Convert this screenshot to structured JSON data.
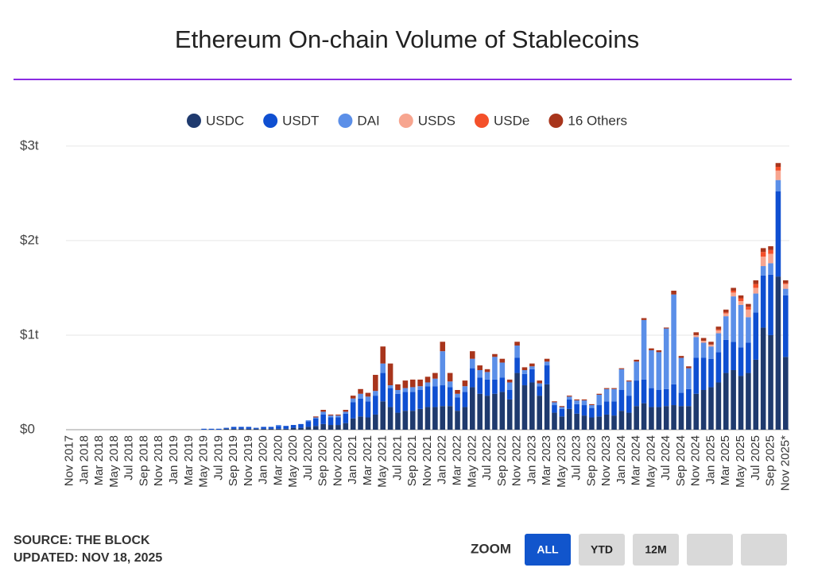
{
  "chart_data": {
    "type": "stacked-bar",
    "title": "Ethereum On-chain Volume of Stablecoins",
    "categories": [
      "Nov 2017",
      null,
      "Jan 2018",
      null,
      "Mar 2018",
      null,
      "May 2018",
      null,
      "Jul 2018",
      null,
      "Sep 2018",
      null,
      "Nov 2018",
      null,
      "Jan 2019",
      null,
      "Mar 2019",
      null,
      "May 2019",
      null,
      "Jul 2019",
      null,
      "Sep 2019",
      null,
      "Nov 2019",
      null,
      "Jan 2020",
      null,
      "Mar 2020",
      null,
      "May 2020",
      null,
      "Jul 2020",
      null,
      "Sep 2020",
      null,
      "Nov 2020",
      null,
      "Jan 2021",
      null,
      "Mar 2021",
      null,
      "May 2021",
      null,
      "Jul 2021",
      null,
      "Sep 2021",
      null,
      "Nov 2021",
      null,
      "Jan 2022",
      null,
      "Mar 2022",
      null,
      "May 2022",
      null,
      "Jul 2022",
      null,
      "Sep 2022",
      null,
      "Nov 2022",
      null,
      "Jan 2023",
      null,
      "Mar 2023",
      null,
      "May 2023",
      null,
      "Jul 2023",
      null,
      "Sep 2023",
      null,
      "Nov 2023",
      null,
      "Jan 2024",
      null,
      "Mar 2024",
      null,
      "May 2024",
      null,
      "Jul 2024",
      null,
      "Sep 2024",
      null,
      "Nov 2024",
      null,
      "Jan 2025",
      null,
      "Mar 2025",
      null,
      "May 2025",
      null,
      "Jul 2025",
      null,
      "Sep 2025",
      null,
      "Nov 2025*"
    ],
    "series": [
      {
        "name": "USDC",
        "color": "#1f3a6e",
        "values": [
          0,
          0,
          0,
          0,
          0,
          0,
          0,
          0,
          0,
          0,
          0,
          0,
          0,
          0,
          0,
          0,
          0,
          0,
          0,
          0,
          0,
          0.01,
          0.01,
          0.01,
          0.01,
          0.01,
          0.01,
          0.01,
          0.01,
          0.01,
          0.02,
          0.02,
          0.03,
          0.04,
          0.06,
          0.05,
          0.05,
          0.07,
          0.12,
          0.14,
          0.13,
          0.16,
          0.3,
          0.24,
          0.18,
          0.2,
          0.2,
          0.22,
          0.24,
          0.24,
          0.25,
          0.25,
          0.2,
          0.24,
          0.45,
          0.38,
          0.36,
          0.38,
          0.4,
          0.32,
          0.6,
          0.47,
          0.5,
          0.36,
          0.48,
          0.18,
          0.14,
          0.22,
          0.17,
          0.15,
          0.13,
          0.14,
          0.16,
          0.15,
          0.2,
          0.18,
          0.25,
          0.28,
          0.24,
          0.24,
          0.25,
          0.26,
          0.25,
          0.25,
          0.38,
          0.42,
          0.45,
          0.5,
          0.6,
          0.63,
          0.57,
          0.6,
          0.74,
          1.08,
          1.0,
          1.62,
          0.77
        ]
      },
      {
        "name": "USDT",
        "color": "#0f4fd1",
        "values": [
          0,
          0,
          0,
          0,
          0,
          0,
          0,
          0,
          0,
          0,
          0,
          0,
          0,
          0,
          0,
          0,
          0,
          0,
          0.01,
          0.01,
          0.01,
          0.01,
          0.02,
          0.02,
          0.02,
          0.01,
          0.02,
          0.02,
          0.03,
          0.03,
          0.03,
          0.04,
          0.06,
          0.08,
          0.1,
          0.08,
          0.08,
          0.1,
          0.17,
          0.19,
          0.17,
          0.2,
          0.3,
          0.2,
          0.2,
          0.2,
          0.2,
          0.2,
          0.22,
          0.22,
          0.22,
          0.2,
          0.14,
          0.16,
          0.2,
          0.17,
          0.17,
          0.15,
          0.15,
          0.1,
          0.16,
          0.12,
          0.14,
          0.1,
          0.2,
          0.08,
          0.08,
          0.1,
          0.1,
          0.11,
          0.1,
          0.12,
          0.14,
          0.15,
          0.22,
          0.18,
          0.27,
          0.25,
          0.2,
          0.18,
          0.18,
          0.22,
          0.14,
          0.18,
          0.38,
          0.34,
          0.3,
          0.32,
          0.35,
          0.3,
          0.3,
          0.32,
          0.5,
          0.55,
          0.64,
          0.9,
          0.65
        ]
      },
      {
        "name": "DAI",
        "color": "#5b8fe8",
        "values": [
          0,
          0,
          0,
          0,
          0,
          0,
          0,
          0,
          0,
          0,
          0,
          0,
          0,
          0,
          0,
          0,
          0,
          0,
          0,
          0,
          0,
          0,
          0,
          0,
          0,
          0,
          0,
          0,
          0.01,
          0,
          0,
          0,
          0.01,
          0.01,
          0.03,
          0.02,
          0.02,
          0.02,
          0.04,
          0.05,
          0.05,
          0.05,
          0.1,
          0.03,
          0.04,
          0.04,
          0.05,
          0.04,
          0.04,
          0.08,
          0.36,
          0.06,
          0.04,
          0.06,
          0.1,
          0.08,
          0.08,
          0.24,
          0.16,
          0.08,
          0.13,
          0.04,
          0.03,
          0.03,
          0.04,
          0.03,
          0.02,
          0.03,
          0.04,
          0.05,
          0.03,
          0.11,
          0.13,
          0.13,
          0.22,
          0.15,
          0.2,
          0.63,
          0.4,
          0.4,
          0.64,
          0.95,
          0.37,
          0.22,
          0.22,
          0.16,
          0.13,
          0.2,
          0.25,
          0.48,
          0.45,
          0.27,
          0.2,
          0.1,
          0.12,
          0.12,
          0.07
        ]
      },
      {
        "name": "USDS",
        "color": "#f7a58f",
        "values": [
          0,
          0,
          0,
          0,
          0,
          0,
          0,
          0,
          0,
          0,
          0,
          0,
          0,
          0,
          0,
          0,
          0,
          0,
          0,
          0,
          0,
          0,
          0,
          0,
          0,
          0,
          0,
          0,
          0,
          0,
          0,
          0,
          0,
          0,
          0,
          0,
          0,
          0,
          0,
          0,
          0,
          0,
          0,
          0,
          0,
          0,
          0,
          0,
          0,
          0,
          0,
          0,
          0,
          0,
          0,
          0,
          0,
          0,
          0,
          0,
          0,
          0,
          0,
          0,
          0,
          0,
          0,
          0,
          0,
          0,
          0,
          0,
          0,
          0,
          0,
          0,
          0,
          0,
          0,
          0,
          0,
          0,
          0,
          0,
          0.02,
          0.02,
          0.02,
          0.03,
          0.03,
          0.04,
          0.04,
          0.08,
          0.06,
          0.1,
          0.1,
          0.1,
          0.05
        ]
      },
      {
        "name": "USDe",
        "color": "#f4502a",
        "values": [
          0,
          0,
          0,
          0,
          0,
          0,
          0,
          0,
          0,
          0,
          0,
          0,
          0,
          0,
          0,
          0,
          0,
          0,
          0,
          0,
          0,
          0,
          0,
          0,
          0,
          0,
          0,
          0,
          0,
          0,
          0,
          0,
          0,
          0,
          0,
          0,
          0,
          0,
          0,
          0,
          0,
          0,
          0,
          0,
          0,
          0,
          0,
          0,
          0,
          0,
          0,
          0,
          0,
          0,
          0,
          0,
          0,
          0,
          0,
          0,
          0,
          0,
          0,
          0,
          0,
          0,
          0,
          0,
          0,
          0,
          0,
          0,
          0,
          0,
          0,
          0,
          0,
          0,
          0,
          0,
          0,
          0,
          0,
          0,
          0,
          0,
          0,
          0.01,
          0.01,
          0.02,
          0.03,
          0.03,
          0.04,
          0.05,
          0.04,
          0.04,
          0.01
        ]
      },
      {
        "name": "16 Others",
        "color": "#a8351c",
        "values": [
          0,
          0,
          0,
          0,
          0,
          0,
          0,
          0,
          0,
          0,
          0,
          0,
          0,
          0,
          0,
          0,
          0,
          0,
          0,
          0,
          0,
          0,
          0,
          0,
          0,
          0,
          0,
          0,
          0,
          0,
          0,
          0,
          0,
          0.01,
          0.02,
          0.01,
          0.01,
          0.02,
          0.03,
          0.05,
          0.04,
          0.17,
          0.18,
          0.23,
          0.06,
          0.08,
          0.08,
          0.07,
          0.06,
          0.06,
          0.1,
          0.09,
          0.04,
          0.06,
          0.08,
          0.05,
          0.03,
          0.03,
          0.04,
          0.03,
          0.04,
          0.03,
          0.03,
          0.03,
          0.03,
          0.01,
          0.01,
          0.01,
          0.01,
          0.01,
          0.01,
          0.01,
          0.01,
          0.01,
          0.01,
          0.01,
          0.02,
          0.02,
          0.02,
          0.02,
          0.01,
          0.04,
          0.02,
          0.02,
          0.03,
          0.03,
          0.03,
          0.03,
          0.03,
          0.03,
          0.03,
          0.03,
          0.04,
          0.04,
          0.04,
          0.04,
          0.03
        ]
      }
    ],
    "ylim": [
      0,
      3.2
    ],
    "yticks": [
      {
        "value": 0,
        "label": "$0"
      },
      {
        "value": 1,
        "label": "$1t"
      },
      {
        "value": 2,
        "label": "$2t"
      },
      {
        "value": 3,
        "label": "$3t"
      }
    ],
    "grid": true,
    "legend": "top"
  },
  "footer": {
    "source": "SOURCE: THE BLOCK",
    "updated": "UPDATED: NOV 18, 2025"
  },
  "zoom": {
    "label": "ZOOM",
    "buttons": [
      "ALL",
      "YTD",
      "12M"
    ]
  }
}
